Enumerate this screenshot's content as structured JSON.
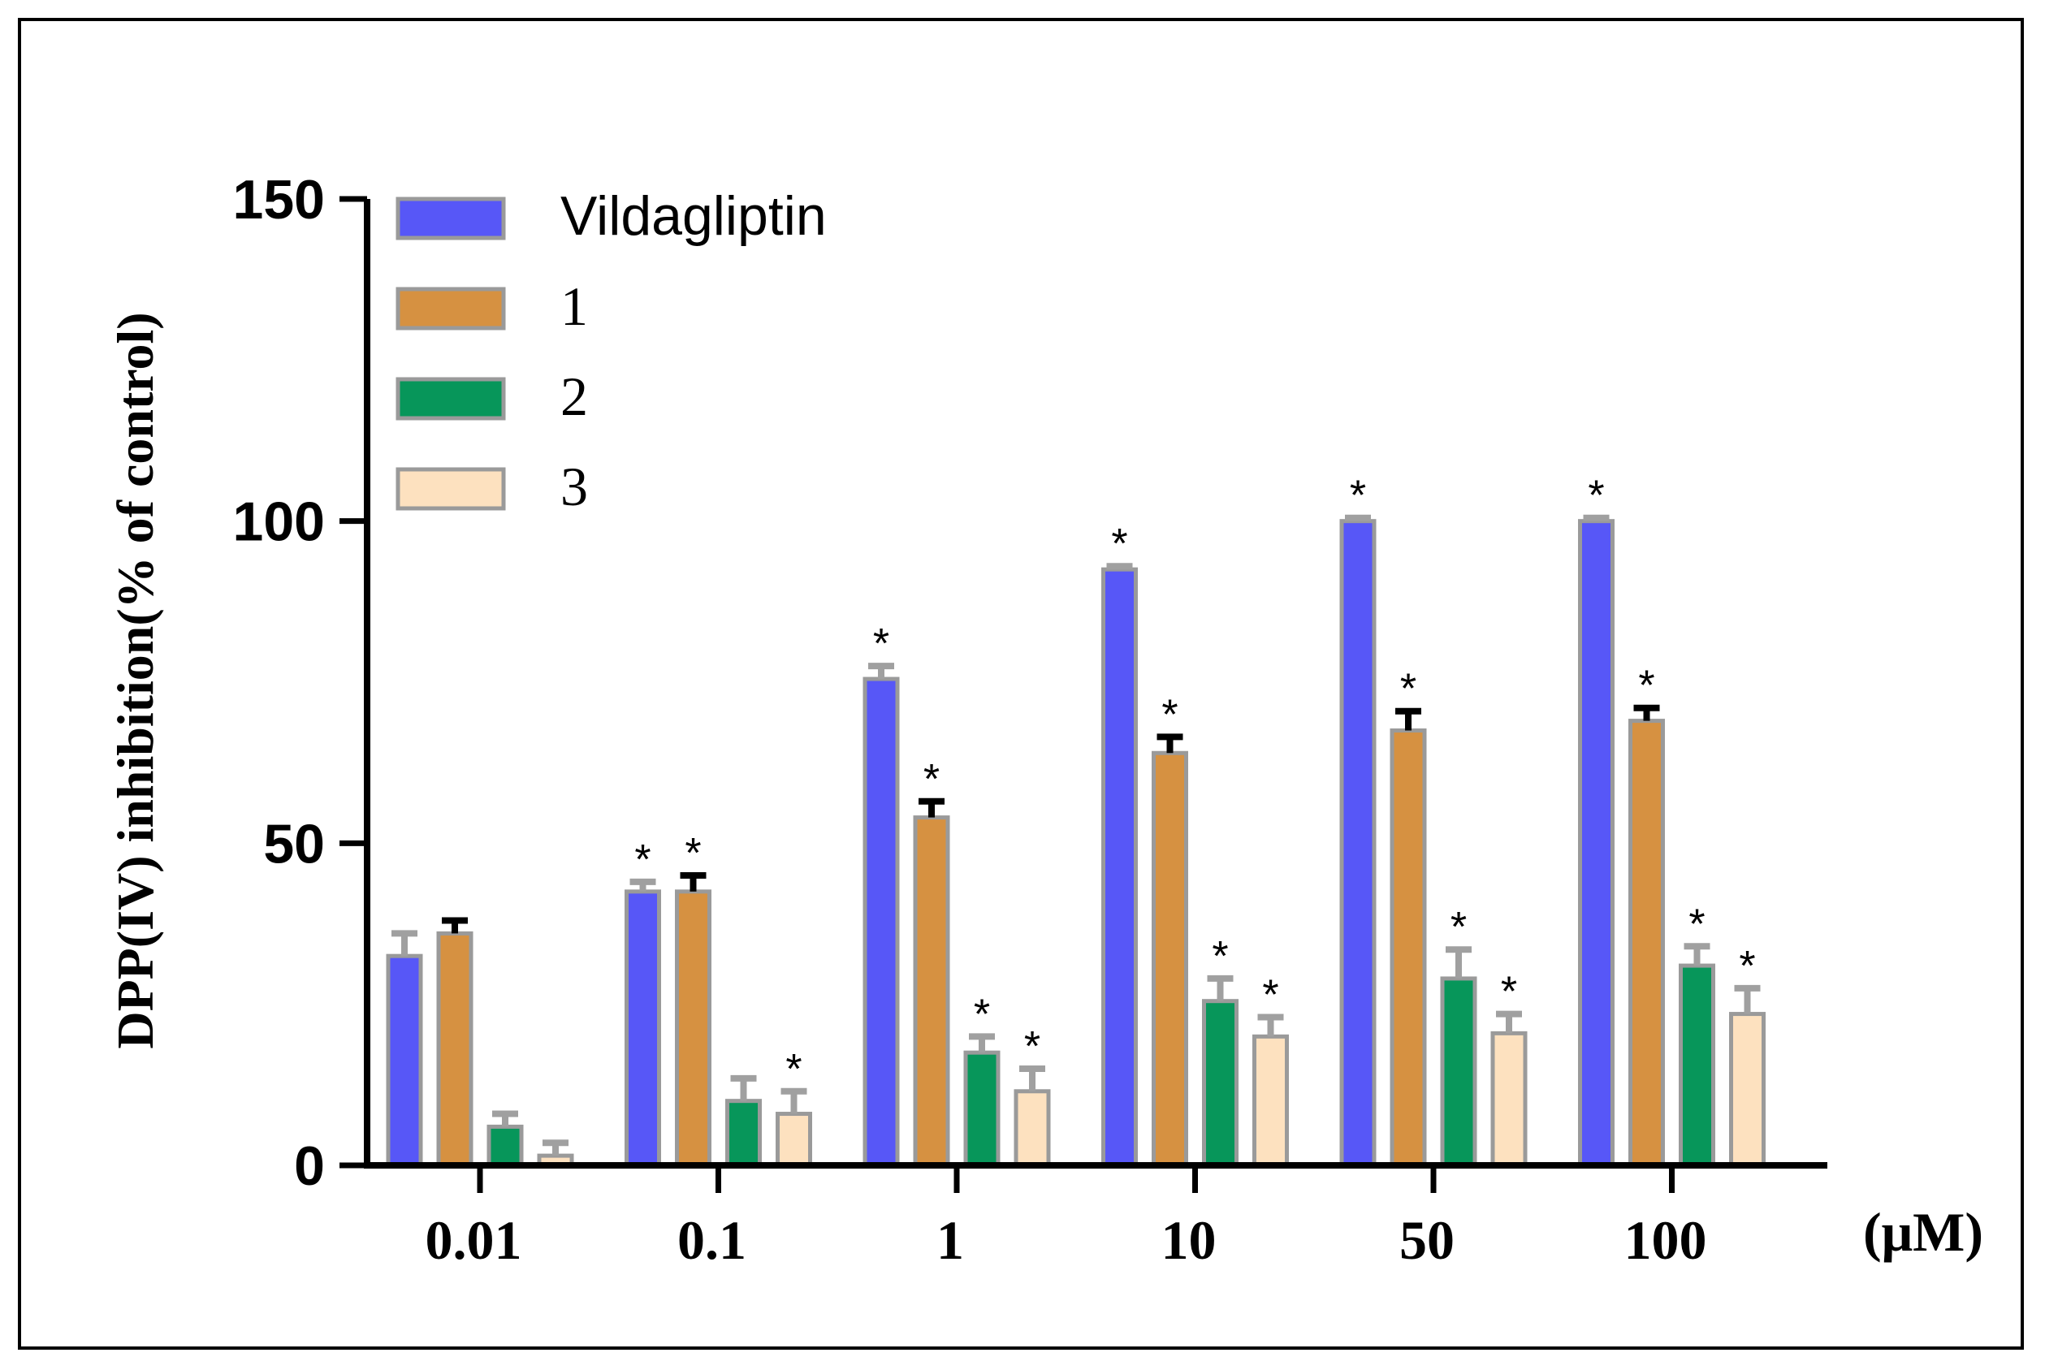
{
  "chart_data": {
    "type": "bar",
    "title": "",
    "xlabel": "",
    "x_unit": "(μM)",
    "ylabel": "DPP(IV) inhibition(% of control)",
    "ylim": [
      0,
      150
    ],
    "yticks": [
      0,
      50,
      100,
      150
    ],
    "y_tick_labels": [
      "0",
      "50",
      "100",
      "150"
    ],
    "categories": [
      "0.01",
      "0.1",
      "1",
      "10",
      "50",
      "100"
    ],
    "significance_marker": "*",
    "legend_position": "top-left",
    "series": [
      {
        "name": "Vildagliptin",
        "color": "#5757f7",
        "error_color": "#a0a0a0",
        "values": [
          32.5,
          42.5,
          75.5,
          92.5,
          100,
          100
        ],
        "errors": [
          3.5,
          1.5,
          2.0,
          0.5,
          0.5,
          0.5
        ],
        "significant": [
          false,
          true,
          true,
          true,
          true,
          true
        ]
      },
      {
        "name": "1",
        "color": "#d69141",
        "error_color": "#000000",
        "values": [
          36,
          42.5,
          54,
          64,
          67.5,
          69
        ],
        "errors": [
          2.0,
          2.5,
          2.5,
          2.5,
          3.0,
          2.0
        ],
        "significant": [
          false,
          true,
          true,
          true,
          true,
          true
        ]
      },
      {
        "name": "2",
        "color": "#07965a",
        "error_color": "#a0a0a0",
        "values": [
          6,
          10,
          17.5,
          25.5,
          29,
          31
        ],
        "errors": [
          2.0,
          3.5,
          2.5,
          3.5,
          4.5,
          3.0
        ],
        "significant": [
          false,
          false,
          true,
          true,
          true,
          true
        ]
      },
      {
        "name": "3",
        "color": "#fde1bf",
        "error_color": "#a0a0a0",
        "values": [
          1.5,
          8,
          11.5,
          20,
          20.5,
          23.5
        ],
        "errors": [
          2.0,
          3.5,
          3.5,
          3.0,
          3.0,
          4.0
        ],
        "significant": [
          false,
          true,
          true,
          true,
          true,
          true
        ]
      }
    ]
  }
}
